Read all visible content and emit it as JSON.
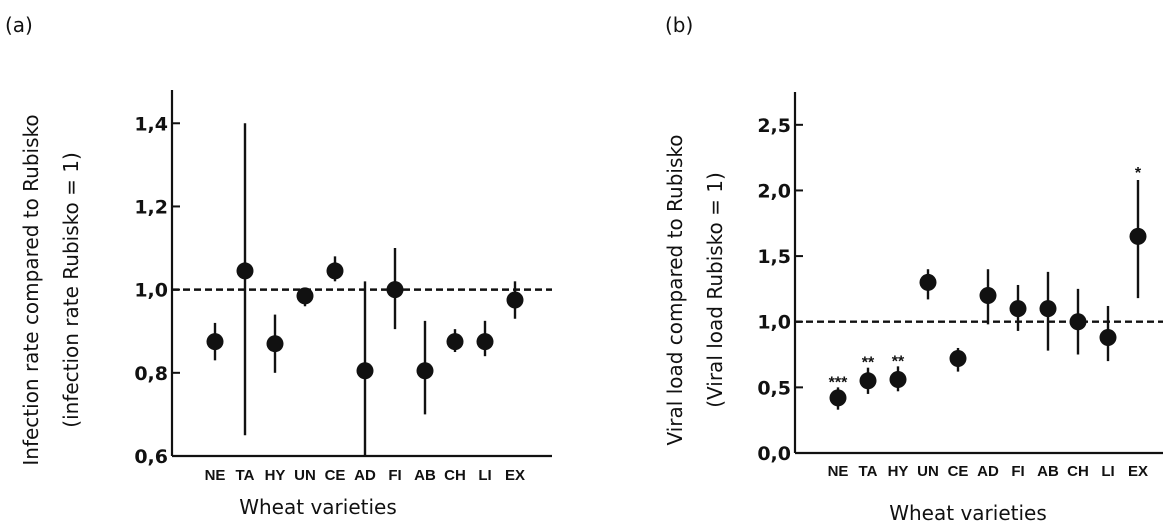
{
  "chart_data": [
    {
      "type": "scatter",
      "panel_label": "(a)",
      "title": "",
      "xlabel": "Wheat varieties",
      "ylabel_line1": "Infection rate compared to Rubisko",
      "ylabel_line2": "(infection rate Rubisko = 1)",
      "ylim": [
        0.6,
        1.48
      ],
      "yticks": [
        0.6,
        0.8,
        1.0,
        1.2,
        1.4
      ],
      "ytick_labels": [
        "0,6",
        "0,8",
        "1,0",
        "1,2",
        "1,4"
      ],
      "reference_line": 1.0,
      "categories": [
        "NE",
        "TA",
        "HY",
        "UN",
        "CE",
        "AD",
        "FI",
        "AB",
        "CH",
        "LI",
        "EX"
      ],
      "values": [
        0.875,
        1.045,
        0.87,
        0.985,
        1.045,
        0.805,
        1.0,
        0.805,
        0.875,
        0.875,
        0.975
      ],
      "err_low": [
        0.83,
        0.65,
        0.8,
        0.96,
        1.02,
        0.6,
        0.905,
        0.7,
        0.85,
        0.84,
        0.93
      ],
      "err_high": [
        0.92,
        1.4,
        0.94,
        1.0,
        1.08,
        1.02,
        1.1,
        0.925,
        0.905,
        0.925,
        1.02
      ],
      "significance": [
        "",
        "",
        "",
        "",
        "",
        "",
        "",
        "",
        "",
        "",
        ""
      ]
    },
    {
      "type": "scatter",
      "panel_label": "(b)",
      "title": "",
      "xlabel": "Wheat varieties",
      "ylabel_line1": "Viral load compared to Rubisko",
      "ylabel_line2": "(Viral load Rubisko = 1)",
      "ylim": [
        0.0,
        2.75
      ],
      "yticks": [
        0.0,
        0.5,
        1.0,
        1.5,
        2.0,
        2.5
      ],
      "ytick_labels": [
        "0,0",
        "0,5",
        "1,0",
        "1,5",
        "2,0",
        "2,5"
      ],
      "reference_line": 1.0,
      "categories": [
        "NE",
        "TA",
        "HY",
        "UN",
        "CE",
        "AD",
        "FI",
        "AB",
        "CH",
        "LI",
        "EX"
      ],
      "values": [
        0.42,
        0.55,
        0.56,
        1.3,
        0.72,
        1.2,
        1.1,
        1.1,
        1.0,
        0.88,
        1.65
      ],
      "err_low": [
        0.33,
        0.45,
        0.47,
        1.17,
        0.62,
        0.98,
        0.93,
        0.78,
        0.75,
        0.7,
        1.18
      ],
      "err_high": [
        0.5,
        0.65,
        0.66,
        1.4,
        0.8,
        1.4,
        1.28,
        1.38,
        1.25,
        1.12,
        2.08
      ],
      "significance": [
        "***",
        "**",
        "**",
        "",
        "",
        "",
        "",
        "",
        "",
        "",
        "*"
      ]
    }
  ]
}
